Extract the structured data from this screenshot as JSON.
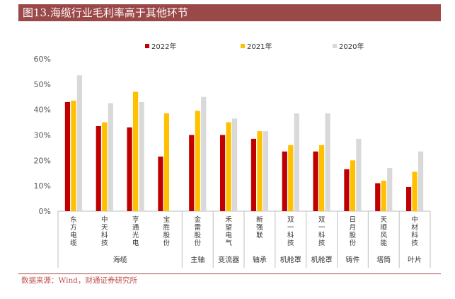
{
  "title": "图13.海缆行业毛利率高于其他环节",
  "source": "数据来源：Wind，财通证券研究所",
  "colors": {
    "s2022": "#c00000",
    "s2021": "#ffc000",
    "s2020": "#d9d9d9",
    "title_bg": "#9b4848"
  },
  "chart_data": {
    "type": "bar",
    "title": "图13.海缆行业毛利率高于其他环节",
    "xlabel": "",
    "ylabel": "",
    "ylim": [
      0,
      60
    ],
    "yticks": [
      "0%",
      "10%",
      "20%",
      "30%",
      "40%",
      "50%",
      "60%"
    ],
    "legend_position": "top",
    "categories": [
      "东方电缆",
      "中天科技",
      "亨通光电",
      "宝胜股份",
      "金雷股份",
      "禾望电气",
      "新强联",
      "双一科技",
      "双一科技",
      "日月股份",
      "天顺风能",
      "中材科技"
    ],
    "series": [
      {
        "name": "2022年",
        "values": [
          43,
          33.5,
          33,
          21.5,
          30,
          30,
          28.5,
          23.5,
          23.5,
          16.5,
          11,
          9.5
        ]
      },
      {
        "name": "2021年",
        "values": [
          43.5,
          35,
          47,
          38.5,
          39.5,
          35,
          31.5,
          26,
          26,
          20,
          12,
          15.5
        ]
      },
      {
        "name": "2020年",
        "values": [
          53.5,
          42.5,
          43,
          null,
          45,
          36.5,
          31.5,
          38.5,
          38.5,
          28.5,
          17,
          23.5
        ]
      }
    ],
    "groups": [
      {
        "label": "海缆",
        "count": 4
      },
      {
        "label": "主轴",
        "count": 1
      },
      {
        "label": "变流器",
        "count": 1
      },
      {
        "label": "轴承",
        "count": 1
      },
      {
        "label": "机舱罩",
        "count": 1
      },
      {
        "label": "机舱罩",
        "count": 1
      },
      {
        "label": "铸件",
        "count": 1
      },
      {
        "label": "塔筒",
        "count": 1
      },
      {
        "label": "叶片",
        "count": 1
      }
    ]
  }
}
